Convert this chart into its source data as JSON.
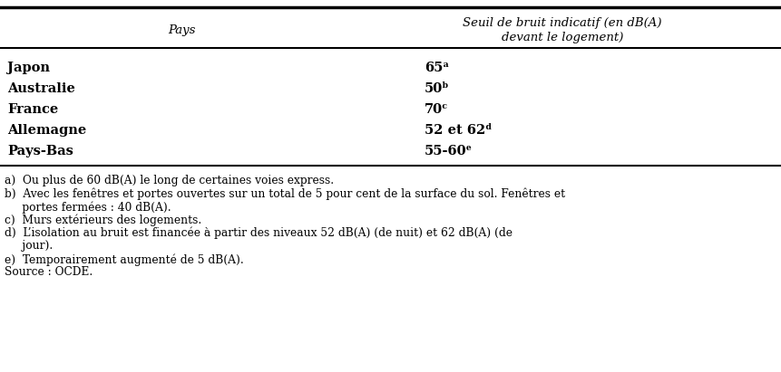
{
  "col1_header": "Pays",
  "col2_header": "Seuil de bruit indicatif (en dB(A))\ndevant le logement)",
  "col2_header_line1": "Seuil de bruit indicatif (en dB(A)",
  "col2_header_line2": "devant le logement)",
  "rows": [
    [
      "Japon",
      "65ᵃ"
    ],
    [
      "Australie",
      "50ᵇ"
    ],
    [
      "France",
      "70ᶜ"
    ],
    [
      "Allemagne",
      "52 et 62ᵈ"
    ],
    [
      "Pays-Bas",
      "55-60ᵉ"
    ]
  ],
  "footnotes_a": "a)  Ou plus de 60 dB(A) le long de certaines voies express.",
  "footnotes_b_1": "b)  Avec les fenêtres et portes ouvertes sur un total de 5 pour cent de la surface du sol. Fenêtres et",
  "footnotes_b_2": "     portes fermées : 40 dB(A).",
  "footnotes_c": "c)  Murs extérieurs des logements.",
  "footnotes_d_1": "d)  L’isolation au bruit est financée à partir des niveaux 52 dB(A) (de nuit) et 62 dB(A) (de",
  "footnotes_d_2": "     jour).",
  "footnotes_e": "e)  Temporairement augmenté de 5 dB(A).",
  "footnotes_src": "Source : OCDE.",
  "bg_color": "#ffffff",
  "text_color": "#000000",
  "header_fontsize": 9.5,
  "body_fontsize": 10.5,
  "footnote_fontsize": 8.8
}
